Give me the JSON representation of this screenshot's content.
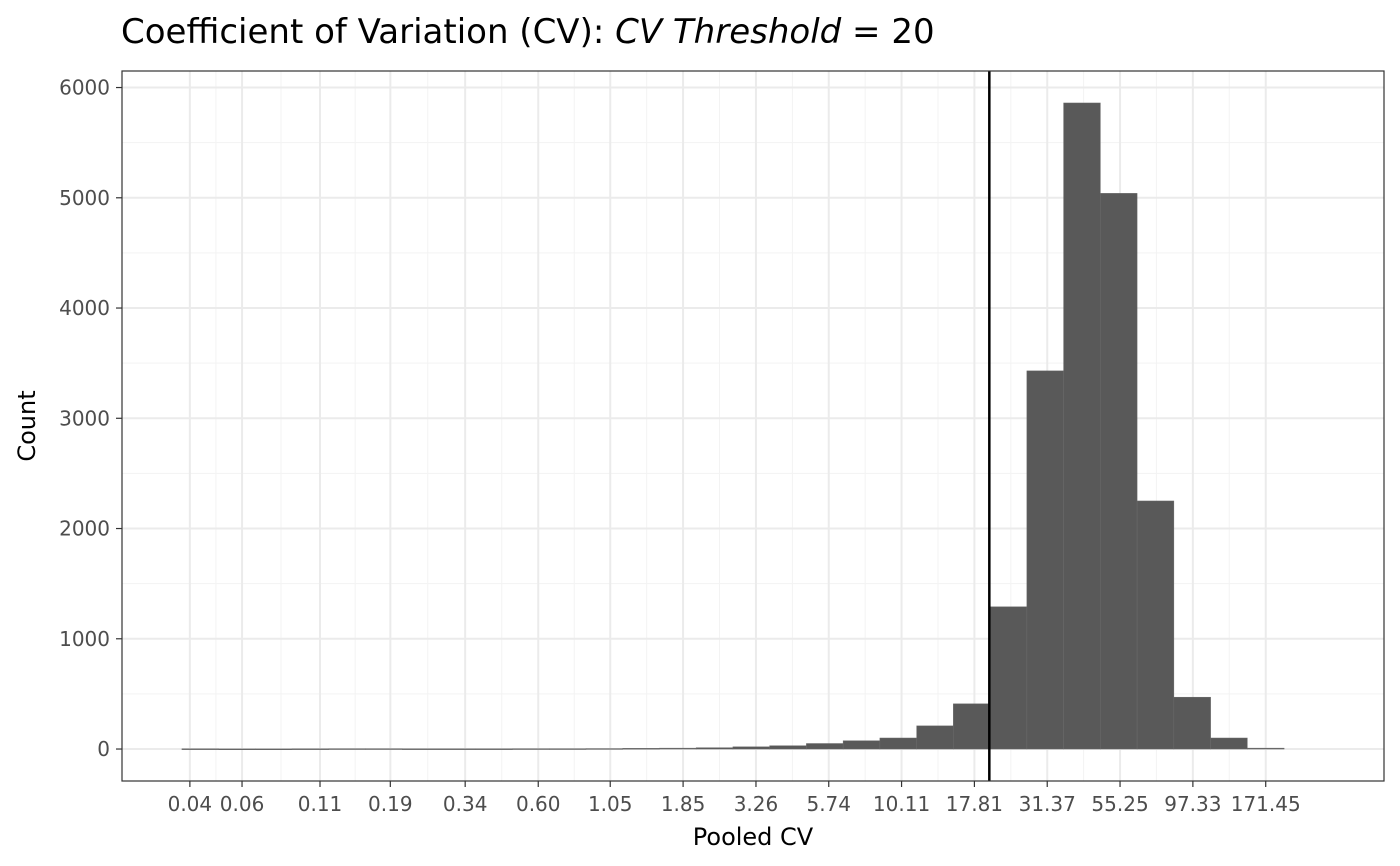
{
  "chart_data": {
    "type": "bar",
    "title": {
      "prefix": "Coefficient of Variation (CV):  ",
      "italic": "CV Threshold",
      "suffix": " = 20"
    },
    "xlabel": "Pooled CV",
    "ylabel": "Count",
    "x_scale": "log10",
    "x_ticks": [
      0.04,
      0.06,
      0.11,
      0.19,
      0.34,
      0.6,
      1.05,
      1.85,
      3.26,
      5.74,
      10.11,
      17.81,
      31.37,
      55.25,
      97.33,
      171.45
    ],
    "x_tick_labels": [
      "0.04",
      "0.06",
      "0.11",
      "0.19",
      "0.34",
      "0.60",
      "1.05",
      "1.85",
      "3.26",
      "5.74",
      "10.11",
      "17.81",
      "31.37",
      "55.25",
      "97.33",
      "171.45"
    ],
    "xlim": [
      0.0236,
      430
    ],
    "y_ticks": [
      0,
      1000,
      2000,
      3000,
      4000,
      5000,
      6000
    ],
    "ylim": [
      -290,
      6150
    ],
    "threshold": 20,
    "grid": true,
    "bins": [
      {
        "x0": 0.0376,
        "x1": 0.05,
        "count": 2
      },
      {
        "x0": 0.05,
        "x1": 0.0665,
        "count": 1
      },
      {
        "x0": 0.0665,
        "x1": 0.0885,
        "count": 1
      },
      {
        "x0": 0.0885,
        "x1": 0.1178,
        "count": 2
      },
      {
        "x0": 0.1178,
        "x1": 0.1567,
        "count": 3
      },
      {
        "x0": 0.1567,
        "x1": 0.2085,
        "count": 3
      },
      {
        "x0": 0.2085,
        "x1": 0.2774,
        "count": 2
      },
      {
        "x0": 0.2774,
        "x1": 0.3691,
        "count": 2
      },
      {
        "x0": 0.3691,
        "x1": 0.4911,
        "count": 2
      },
      {
        "x0": 0.4911,
        "x1": 0.6535,
        "count": 3
      },
      {
        "x0": 0.6535,
        "x1": 0.8695,
        "count": 3
      },
      {
        "x0": 0.8695,
        "x1": 1.157,
        "count": 4
      },
      {
        "x0": 1.157,
        "x1": 1.539,
        "count": 6
      },
      {
        "x0": 1.539,
        "x1": 2.048,
        "count": 8
      },
      {
        "x0": 2.048,
        "x1": 2.725,
        "count": 12
      },
      {
        "x0": 2.725,
        "x1": 3.626,
        "count": 20
      },
      {
        "x0": 3.626,
        "x1": 4.825,
        "count": 30
      },
      {
        "x0": 4.825,
        "x1": 6.42,
        "count": 50
      },
      {
        "x0": 6.42,
        "x1": 8.542,
        "count": 75
      },
      {
        "x0": 8.542,
        "x1": 11.37,
        "count": 100
      },
      {
        "x0": 11.37,
        "x1": 15.12,
        "count": 210
      },
      {
        "x0": 15.12,
        "x1": 20.12,
        "count": 410
      },
      {
        "x0": 20.12,
        "x1": 26.78,
        "count": 1290
      },
      {
        "x0": 26.78,
        "x1": 35.63,
        "count": 3430
      },
      {
        "x0": 35.63,
        "x1": 47.41,
        "count": 5860
      },
      {
        "x0": 47.41,
        "x1": 63.08,
        "count": 5040
      },
      {
        "x0": 63.08,
        "x1": 83.94,
        "count": 2250
      },
      {
        "x0": 83.94,
        "x1": 111.7,
        "count": 470
      },
      {
        "x0": 111.7,
        "x1": 148.6,
        "count": 100
      },
      {
        "x0": 148.6,
        "x1": 197.8,
        "count": 8
      }
    ],
    "colors": {
      "bar": "#595959",
      "bar_edge": "#6a6a6a",
      "grid_major": "#ebebeb",
      "grid_minor": "#f3f3f3",
      "panel_border": "#333333",
      "threshold_line": "#000000"
    }
  }
}
